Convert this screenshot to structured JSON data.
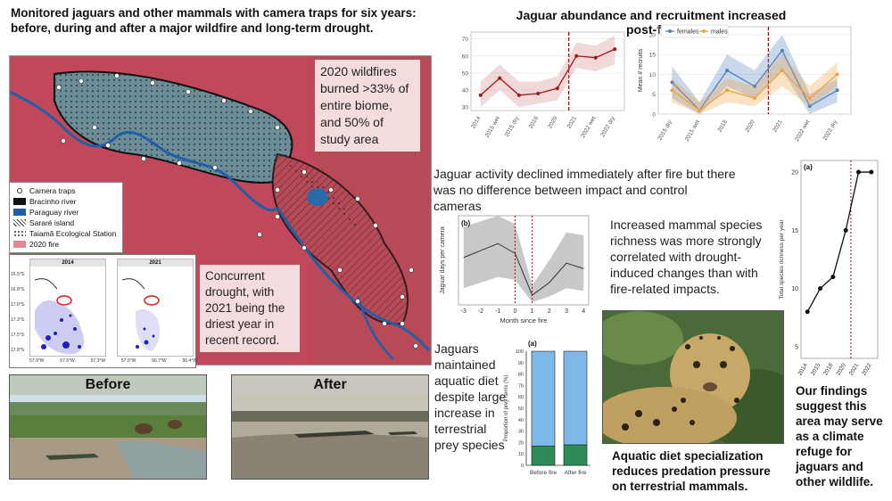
{
  "header": {
    "main_title": "Monitored jaguars and other mammals with camera traps for six years: before, during and after a major wildfire and long-term drought.",
    "right_title": "Jaguar abundance and recruitment increased post-fire"
  },
  "map": {
    "fire_note": "2020 wildfires burned >33% of entire biome, and 50% of study area",
    "drought_note": "Concurrent drought, with 2021 being the driest year in recent record.",
    "legend": [
      {
        "label": "Camera traps",
        "color": "#ffffff",
        "icon": "circle-marker"
      },
      {
        "label": "Bracinho river",
        "color": "#111111",
        "icon": "line"
      },
      {
        "label": "Paraguay river",
        "color": "#1f5fa8",
        "icon": "line"
      },
      {
        "label": "Sararé island",
        "color": "#dddddd",
        "icon": "hatch"
      },
      {
        "label": "Taiamã Ecological Station",
        "color": "#777777",
        "icon": "dots"
      },
      {
        "label": "2020 fire",
        "color": "#e08a94",
        "icon": "fill"
      }
    ],
    "inset": {
      "panels": [
        "2014",
        "2021"
      ],
      "y_ticks": [
        "16.5°S",
        "16.8°S",
        "17.0°S",
        "17.3°S",
        "17.5°S",
        "17.8°S"
      ],
      "x_ticks": [
        "57.9°W",
        "57.6°W",
        "57.3°W",
        "57.0°W",
        "56.7°W",
        "56.4°W"
      ]
    }
  },
  "photos": {
    "before_label": "Before",
    "after_label": "After",
    "jaguar_caption": "Aquatic diet specialization reduces predation pressure on terrestrial mammals."
  },
  "texts": {
    "activity": "Jaguar activity declined immediately after fire but there was no difference between impact and control cameras",
    "richness": "Increased mammal species richness was more strongly correlated with drought-induced changes than with fire-related impacts.",
    "diet": "Jaguars maintained aquatic diet despite large increase in terrestrial prey species",
    "findings": "Our findings suggest this area may serve as a climate refuge for jaguars and other wildlife."
  },
  "chart_data": [
    {
      "type": "line",
      "id": "abundance",
      "title": "",
      "categories": [
        "2014",
        "2015 wet",
        "2015 dry",
        "2016",
        "2020",
        "2021",
        "2022 wet",
        "2022 dry"
      ],
      "series": [
        {
          "name": "abundance",
          "values": [
            37,
            47,
            37,
            38,
            41,
            60,
            59,
            64
          ],
          "ci_lower": [
            30,
            40,
            30,
            32,
            34,
            53,
            51,
            55
          ],
          "ci_upper": [
            45,
            55,
            45,
            45,
            48,
            68,
            66,
            72
          ]
        }
      ],
      "y_ticks": [
        30,
        40,
        50,
        60,
        70
      ],
      "ylim": [
        28,
        74
      ],
      "fire_marker_after_index": 4.6,
      "xlabel": "",
      "ylabel": ""
    },
    {
      "type": "line",
      "id": "recruits",
      "categories": [
        "2015 dry",
        "2015 wet",
        "2018",
        "2020",
        "2021",
        "2022 wet",
        "2022 dry"
      ],
      "series": [
        {
          "name": "females",
          "color": "#4f7fc0",
          "values": [
            8,
            1,
            11,
            7,
            16,
            2,
            6
          ],
          "ci_lower": [
            4,
            0,
            7,
            4,
            11,
            0,
            3
          ],
          "ci_upper": [
            12,
            3,
            15,
            11,
            20,
            5,
            9
          ]
        },
        {
          "name": "males",
          "color": "#f0a040",
          "values": [
            6,
            1,
            6,
            4,
            11,
            4,
            10
          ],
          "ci_lower": [
            3,
            0,
            3,
            2,
            7,
            2,
            7
          ],
          "ci_upper": [
            9,
            3,
            9,
            7,
            15,
            7,
            13
          ]
        }
      ],
      "y_ticks": [
        0,
        5,
        10,
        15,
        20
      ],
      "ylim": [
        0,
        22
      ],
      "fire_marker_after_index": 3.5,
      "legend": [
        "females",
        "males"
      ],
      "ylabel": "Mean # recruits"
    },
    {
      "type": "line",
      "id": "activity",
      "panel_label": "(b)",
      "x": [
        -3,
        -2,
        -1,
        0,
        1,
        2,
        3,
        4
      ],
      "series": [
        {
          "name": "activity",
          "values": [
            1.7,
            1.95,
            2.2,
            1.85,
            0.35,
            0.8,
            1.5,
            1.3
          ],
          "ci_lower": [
            0.6,
            0.8,
            1.0,
            0.9,
            0.1,
            0.3,
            0.6,
            0.5
          ],
          "ci_upper": [
            2.8,
            3.0,
            3.2,
            2.9,
            0.7,
            1.6,
            2.6,
            2.5
          ]
        }
      ],
      "x_ticks": [
        -3,
        -2,
        -1,
        0,
        1,
        2,
        3,
        4
      ],
      "ylim": [
        0,
        3.2
      ],
      "vlines": [
        0,
        1
      ],
      "xlabel": "Month since fire",
      "ylabel": "Jaguar days per camera"
    },
    {
      "type": "bar",
      "id": "diet",
      "panel_label": "(a)",
      "categories": [
        "Before fire",
        "After fire"
      ],
      "series": [
        {
          "name": "terrestrial",
          "color": "#2e8b57",
          "values": [
            17,
            18
          ]
        },
        {
          "name": "aquatic",
          "color": "#7db8e8",
          "values": [
            83,
            82
          ]
        }
      ],
      "y_ticks": [
        0,
        10,
        20,
        30,
        40,
        50,
        60,
        70,
        80,
        90,
        100
      ],
      "ylim": [
        0,
        100
      ],
      "ylabel": "Proportion of prey items (%)"
    },
    {
      "type": "line",
      "id": "richness",
      "panel_label": "(a)",
      "categories": [
        "2014",
        "2015",
        "2018",
        "2020",
        "2021",
        "2022"
      ],
      "series": [
        {
          "name": "richness",
          "values": [
            8,
            10,
            11,
            15,
            20,
            20
          ]
        }
      ],
      "y_ticks": [
        5,
        10,
        15,
        20
      ],
      "ylim": [
        4,
        21
      ],
      "fire_marker_after_index": 3.4,
      "ylabel": "Total species richness per year"
    }
  ]
}
